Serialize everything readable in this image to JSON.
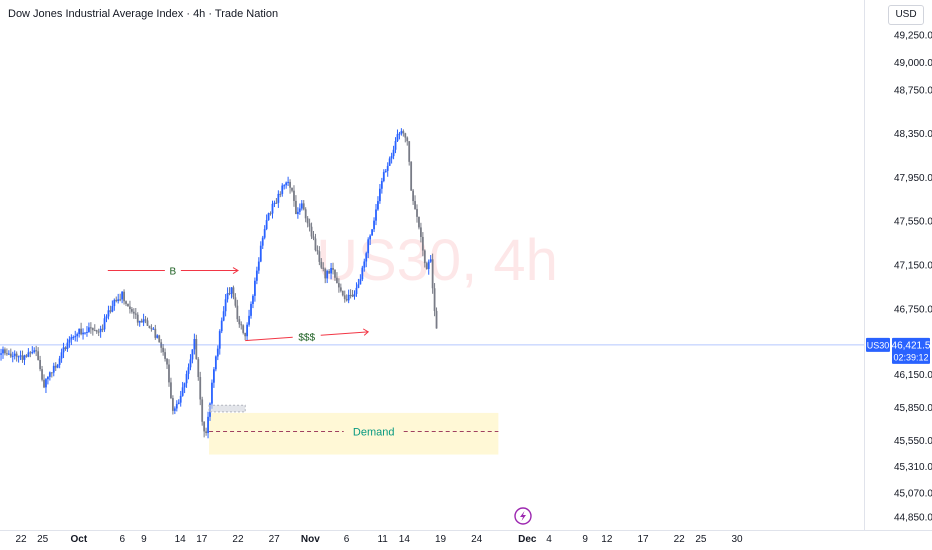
{
  "header": {
    "title": "Dow Jones Industrial Average Index · 4h · Trade Nation",
    "currency": "USD"
  },
  "watermark": "US30, 4h",
  "colors": {
    "up": "#2962ff",
    "down": "#787b86",
    "annotation": "#f23645",
    "demand_zone": "#fff8d6",
    "demand_label": "#089981",
    "price_line": "#2962ff",
    "watermark": "#f23645"
  },
  "chart_data": {
    "type": "candlestick",
    "timeframe": "4h",
    "y_ticks": [
      "44,850.0",
      "45,070.0",
      "45,310.0",
      "45,550.0",
      "45,850.0",
      "46,150.0",
      "46,750.0",
      "47,150.0",
      "47,550.0",
      "47,950.0",
      "48,350.0",
      "48,750.0",
      "49,000.0",
      "49,250.0"
    ],
    "x_ticks": [
      {
        "label": "22",
        "day": 22
      },
      {
        "label": "25",
        "day": 25
      },
      {
        "label": "Oct",
        "day": 30
      },
      {
        "label": "6",
        "day": 36
      },
      {
        "label": "9",
        "day": 39
      },
      {
        "label": "14",
        "day": 44
      },
      {
        "label": "17",
        "day": 47
      },
      {
        "label": "22",
        "day": 52
      },
      {
        "label": "27",
        "day": 57
      },
      {
        "label": "Nov",
        "day": 62
      },
      {
        "label": "6",
        "day": 67
      },
      {
        "label": "11",
        "day": 72
      },
      {
        "label": "14",
        "day": 75
      },
      {
        "label": "19",
        "day": 80
      },
      {
        "label": "24",
        "day": 85
      },
      {
        "label": "Dec",
        "day": 92
      },
      {
        "label": "4",
        "day": 95
      },
      {
        "label": "9",
        "day": 100
      },
      {
        "label": "12",
        "day": 103
      },
      {
        "label": "17",
        "day": 108
      },
      {
        "label": "22",
        "day": 113
      },
      {
        "label": "25",
        "day": 116
      },
      {
        "label": "30",
        "day": 121
      }
    ],
    "price_path": [
      [
        16,
        46250
      ],
      [
        20,
        46360
      ],
      [
        22,
        46300
      ],
      [
        24,
        46400
      ],
      [
        25,
        46050
      ],
      [
        26,
        46150
      ],
      [
        28,
        46380
      ],
      [
        30,
        46550
      ],
      [
        33,
        46560
      ],
      [
        35,
        46820
      ],
      [
        36,
        46880
      ],
      [
        38,
        46650
      ],
      [
        40,
        46600
      ],
      [
        41,
        46450
      ],
      [
        42,
        46300
      ],
      [
        43,
        45820
      ],
      [
        44,
        45950
      ],
      [
        45,
        46200
      ],
      [
        46,
        46450
      ],
      [
        47,
        45750
      ],
      [
        47.5,
        45600
      ],
      [
        48.5,
        46100
      ],
      [
        50,
        46750
      ],
      [
        51,
        46950
      ],
      [
        52,
        46650
      ],
      [
        53,
        46520
      ],
      [
        54,
        46850
      ],
      [
        55,
        47250
      ],
      [
        56,
        47600
      ],
      [
        57,
        47700
      ],
      [
        58,
        47850
      ],
      [
        59,
        47950
      ],
      [
        60,
        47650
      ],
      [
        61,
        47700
      ],
      [
        62,
        47450
      ],
      [
        63,
        47250
      ],
      [
        64,
        47050
      ],
      [
        65,
        47100
      ],
      [
        66,
        46950
      ],
      [
        67,
        46850
      ],
      [
        68,
        46850
      ],
      [
        69,
        47050
      ],
      [
        70,
        47350
      ],
      [
        71,
        47600
      ],
      [
        72,
        47950
      ],
      [
        73,
        48100
      ],
      [
        74,
        48350
      ],
      [
        74.8,
        48350
      ],
      [
        75.5,
        48250
      ],
      [
        76,
        47800
      ],
      [
        77,
        47500
      ],
      [
        78,
        47100
      ],
      [
        78.6,
        47200
      ],
      [
        79,
        46900
      ],
      [
        79.6,
        46421.5
      ]
    ],
    "current_price": "46,421.5",
    "countdown": "02:39:12",
    "symbol": "US30",
    "annotations": [
      {
        "label": "B",
        "day_start": 34,
        "day_end": 52,
        "price": 47100
      },
      {
        "label": "$$$",
        "day_start": 53,
        "day_end": 70,
        "price": 46500
      },
      {
        "label": "Demand",
        "day_start": 48,
        "day_end": 88,
        "price_top": 45800,
        "price_bottom": 45420,
        "price_mid": 45630
      },
      {
        "label": "",
        "day_start": 48,
        "day_end": 53,
        "price_top": 45870,
        "price_bottom": 45810
      }
    ]
  }
}
